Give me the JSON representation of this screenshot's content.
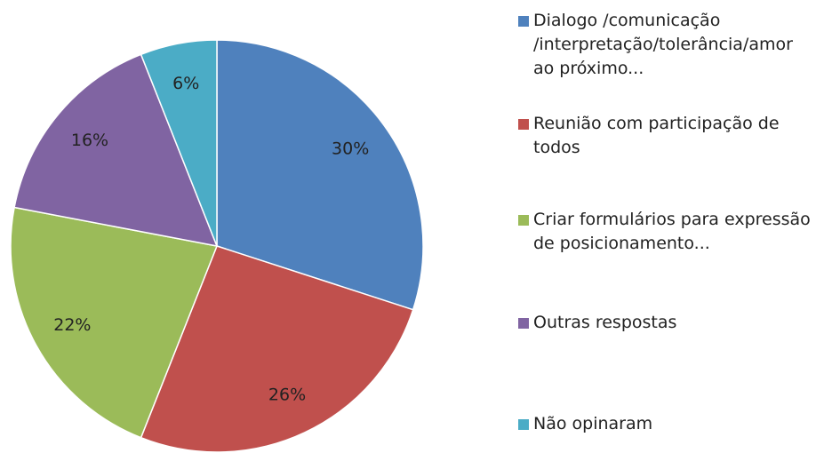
{
  "chart_data": {
    "type": "pie",
    "categories": [
      "Dialogo /comunicação /interpretação/tolerância/amor ao próximo...",
      "Reunião com participação de todos",
      "Criar formulários para expressão de posicionamento...",
      "Outras respostas",
      "Não opinaram"
    ],
    "values": [
      30,
      26,
      22,
      16,
      6
    ],
    "value_labels": [
      "30%",
      "26%",
      "22%",
      "16%",
      "6%"
    ],
    "colors": [
      "#4f81bd",
      "#c0504d",
      "#9bbb59",
      "#8064a2",
      "#4bacc6"
    ],
    "legend": "right"
  }
}
